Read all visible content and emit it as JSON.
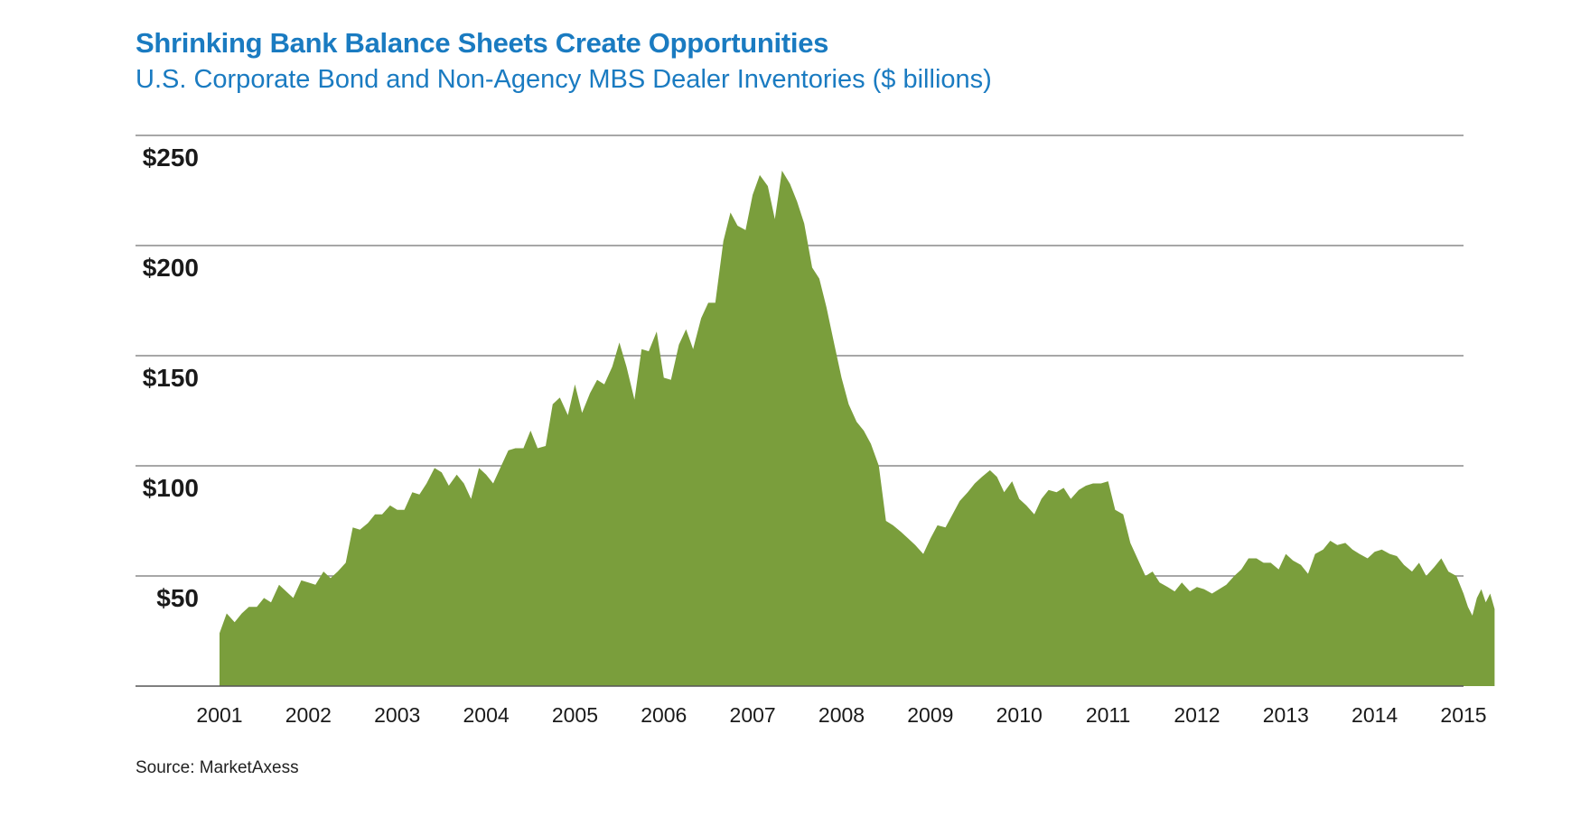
{
  "chart_data": {
    "type": "area",
    "title": "Shrinking Bank Balance Sheets Create Opportunities",
    "subtitle": "U.S. Corporate Bond and Non-Agency MBS Dealer Inventories ($ billions)",
    "source": "Source: MarketAxess",
    "ylim": [
      0,
      250
    ],
    "y_ticks": [
      {
        "value": 50,
        "label": "$50"
      },
      {
        "value": 100,
        "label": "$100"
      },
      {
        "value": 150,
        "label": "$150"
      },
      {
        "value": 200,
        "label": "$200"
      },
      {
        "value": 250,
        "label": "$250"
      }
    ],
    "xlim": [
      2001,
      2015
    ],
    "x_ticks": [
      "2001",
      "2002",
      "2003",
      "2004",
      "2005",
      "2006",
      "2007",
      "2008",
      "2009",
      "2010",
      "2011",
      "2012",
      "2013",
      "2014",
      "2015"
    ],
    "grid": true,
    "color": "#7a9e3c",
    "series": [
      {
        "points": [
          [
            2001.0,
            24
          ],
          [
            2001.08,
            33
          ],
          [
            2001.17,
            29
          ],
          [
            2001.25,
            33
          ],
          [
            2001.33,
            36
          ],
          [
            2001.42,
            36
          ],
          [
            2001.5,
            40
          ],
          [
            2001.58,
            38
          ],
          [
            2001.67,
            46
          ],
          [
            2001.75,
            43
          ],
          [
            2001.83,
            40
          ],
          [
            2001.92,
            48
          ],
          [
            2002.0,
            47
          ],
          [
            2002.08,
            46
          ],
          [
            2002.17,
            52
          ],
          [
            2002.25,
            49
          ],
          [
            2002.33,
            52
          ],
          [
            2002.42,
            56
          ],
          [
            2002.5,
            72
          ],
          [
            2002.58,
            71
          ],
          [
            2002.67,
            74
          ],
          [
            2002.75,
            78
          ],
          [
            2002.83,
            78
          ],
          [
            2002.92,
            82
          ],
          [
            2003.0,
            80
          ],
          [
            2003.08,
            80
          ],
          [
            2003.17,
            88
          ],
          [
            2003.25,
            87
          ],
          [
            2003.33,
            92
          ],
          [
            2003.42,
            99
          ],
          [
            2003.5,
            97
          ],
          [
            2003.58,
            91
          ],
          [
            2003.67,
            96
          ],
          [
            2003.75,
            92
          ],
          [
            2003.83,
            85
          ],
          [
            2003.92,
            99
          ],
          [
            2004.0,
            96
          ],
          [
            2004.08,
            92
          ],
          [
            2004.17,
            100
          ],
          [
            2004.25,
            107
          ],
          [
            2004.33,
            108
          ],
          [
            2004.42,
            108
          ],
          [
            2004.5,
            116
          ],
          [
            2004.58,
            108
          ],
          [
            2004.67,
            109
          ],
          [
            2004.75,
            128
          ],
          [
            2004.83,
            131
          ],
          [
            2004.92,
            123
          ],
          [
            2005.0,
            137
          ],
          [
            2005.08,
            124
          ],
          [
            2005.17,
            133
          ],
          [
            2005.25,
            139
          ],
          [
            2005.33,
            137
          ],
          [
            2005.42,
            145
          ],
          [
            2005.5,
            156
          ],
          [
            2005.58,
            145
          ],
          [
            2005.67,
            130
          ],
          [
            2005.75,
            153
          ],
          [
            2005.83,
            152
          ],
          [
            2005.92,
            161
          ],
          [
            2006.0,
            140
          ],
          [
            2006.08,
            139
          ],
          [
            2006.17,
            155
          ],
          [
            2006.25,
            162
          ],
          [
            2006.33,
            153
          ],
          [
            2006.42,
            167
          ],
          [
            2006.5,
            174
          ],
          [
            2006.58,
            174
          ],
          [
            2006.67,
            202
          ],
          [
            2006.75,
            215
          ],
          [
            2006.83,
            209
          ],
          [
            2006.92,
            207
          ],
          [
            2007.0,
            223
          ],
          [
            2007.08,
            232
          ],
          [
            2007.17,
            227
          ],
          [
            2007.25,
            212
          ],
          [
            2007.33,
            234
          ],
          [
            2007.42,
            228
          ],
          [
            2007.5,
            220
          ],
          [
            2007.58,
            210
          ],
          [
            2007.67,
            190
          ],
          [
            2007.75,
            185
          ],
          [
            2007.83,
            172
          ],
          [
            2007.92,
            155
          ],
          [
            2008.0,
            140
          ],
          [
            2008.08,
            128
          ],
          [
            2008.17,
            120
          ],
          [
            2008.25,
            116
          ],
          [
            2008.33,
            110
          ],
          [
            2008.42,
            100
          ],
          [
            2008.5,
            75
          ],
          [
            2008.58,
            73
          ],
          [
            2008.67,
            70
          ],
          [
            2008.75,
            67
          ],
          [
            2008.83,
            64
          ],
          [
            2008.92,
            60
          ],
          [
            2009.0,
            67
          ],
          [
            2009.08,
            73
          ],
          [
            2009.17,
            72
          ],
          [
            2009.25,
            78
          ],
          [
            2009.33,
            84
          ],
          [
            2009.42,
            88
          ],
          [
            2009.5,
            92
          ],
          [
            2009.58,
            95
          ],
          [
            2009.67,
            98
          ],
          [
            2009.75,
            95
          ],
          [
            2009.83,
            88
          ],
          [
            2009.92,
            93
          ],
          [
            2010.0,
            85
          ],
          [
            2010.08,
            82
          ],
          [
            2010.17,
            78
          ],
          [
            2010.25,
            85
          ],
          [
            2010.33,
            89
          ],
          [
            2010.42,
            88
          ],
          [
            2010.5,
            90
          ],
          [
            2010.58,
            85
          ],
          [
            2010.67,
            89
          ],
          [
            2010.75,
            91
          ],
          [
            2010.83,
            92
          ],
          [
            2010.92,
            92
          ],
          [
            2011.0,
            93
          ],
          [
            2011.08,
            80
          ],
          [
            2011.17,
            78
          ],
          [
            2011.25,
            65
          ],
          [
            2011.33,
            58
          ],
          [
            2011.42,
            50
          ],
          [
            2011.5,
            52
          ],
          [
            2011.58,
            47
          ],
          [
            2011.67,
            45
          ],
          [
            2011.75,
            43
          ],
          [
            2011.83,
            47
          ],
          [
            2011.92,
            43
          ],
          [
            2012.0,
            45
          ],
          [
            2012.08,
            44
          ],
          [
            2012.17,
            42
          ],
          [
            2012.25,
            44
          ],
          [
            2012.33,
            46
          ],
          [
            2012.42,
            50
          ],
          [
            2012.5,
            53
          ],
          [
            2012.58,
            58
          ],
          [
            2012.67,
            58
          ],
          [
            2012.75,
            56
          ],
          [
            2012.83,
            56
          ],
          [
            2012.92,
            53
          ],
          [
            2013.0,
            60
          ],
          [
            2013.08,
            57
          ],
          [
            2013.17,
            55
          ],
          [
            2013.25,
            51
          ],
          [
            2013.33,
            60
          ],
          [
            2013.42,
            62
          ],
          [
            2013.5,
            66
          ],
          [
            2013.58,
            64
          ],
          [
            2013.67,
            65
          ],
          [
            2013.75,
            62
          ],
          [
            2013.83,
            60
          ],
          [
            2013.92,
            58
          ],
          [
            2014.0,
            61
          ],
          [
            2014.08,
            62
          ],
          [
            2014.17,
            60
          ],
          [
            2014.25,
            59
          ],
          [
            2014.33,
            55
          ],
          [
            2014.42,
            52
          ],
          [
            2014.5,
            56
          ],
          [
            2014.58,
            50
          ],
          [
            2014.67,
            54
          ],
          [
            2014.75,
            58
          ],
          [
            2014.83,
            52
          ],
          [
            2014.92,
            50
          ],
          [
            2015.0,
            42
          ],
          [
            2015.05,
            36
          ],
          [
            2015.1,
            32
          ],
          [
            2015.15,
            40
          ],
          [
            2015.2,
            44
          ],
          [
            2015.25,
            38
          ],
          [
            2015.3,
            42
          ],
          [
            2015.35,
            35
          ]
        ]
      }
    ]
  }
}
